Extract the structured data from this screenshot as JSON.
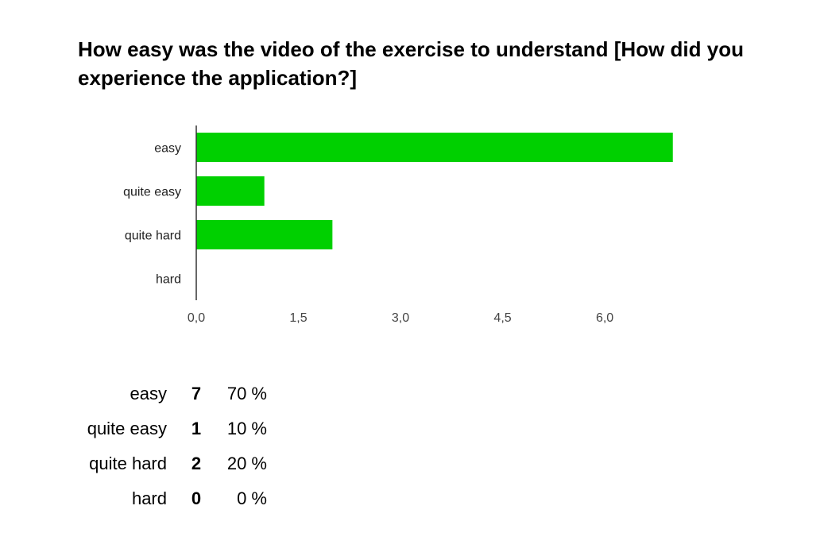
{
  "chart_data": {
    "type": "bar",
    "orientation": "horizontal",
    "title": "How easy was the video of the exercise to understand [How did you experience the application?]",
    "categories": [
      "easy",
      "quite easy",
      "quite hard",
      "hard"
    ],
    "values": [
      7,
      1,
      2,
      0
    ],
    "xticks": [
      "0,0",
      "1,5",
      "3,0",
      "4,5",
      "6,0"
    ],
    "xtick_values": [
      0,
      1.5,
      3,
      4.5,
      6
    ],
    "xlim": [
      0,
      8.1
    ],
    "grid": false,
    "bar_color": "#00d000"
  },
  "summary": {
    "rows": [
      {
        "label": "easy",
        "count": "7",
        "percent": "70 %"
      },
      {
        "label": "quite easy",
        "count": "1",
        "percent": "10 %"
      },
      {
        "label": "quite hard",
        "count": "2",
        "percent": "20 %"
      },
      {
        "label": "hard",
        "count": "0",
        "percent": "0 %"
      }
    ]
  }
}
